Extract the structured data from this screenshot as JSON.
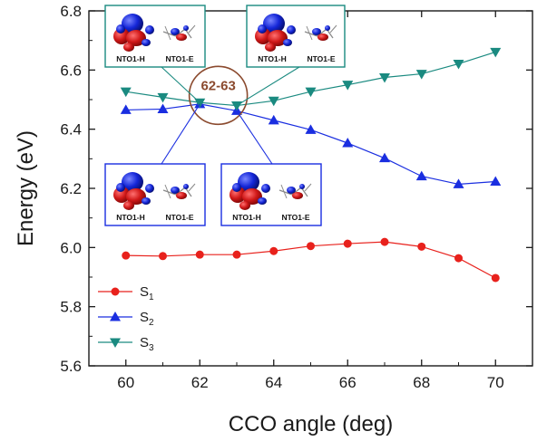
{
  "chart_data": {
    "type": "line",
    "xlabel": "CCO angle (deg)",
    "ylabel": "Energy (eV)",
    "xlim": [
      59,
      71
    ],
    "ylim": [
      5.6,
      6.8
    ],
    "xticks": [
      60,
      62,
      64,
      66,
      68,
      70
    ],
    "yticks": [
      5.6,
      5.8,
      6.0,
      6.2,
      6.4,
      6.6,
      6.8
    ],
    "xtick_labels": [
      "60",
      "62",
      "64",
      "66",
      "68",
      "70"
    ],
    "ytick_labels": [
      "5.6",
      "5.8",
      "6.0",
      "6.2",
      "6.4",
      "6.6",
      "6.8"
    ],
    "grid": false,
    "legend_position": "bottom-left",
    "x": [
      60,
      61,
      62,
      63,
      64,
      65,
      66,
      67,
      68,
      69,
      70
    ],
    "series": [
      {
        "name": "S1",
        "label_main": "S",
        "label_sub": "1",
        "marker": "circle",
        "color": "#e8211c",
        "values": [
          5.973,
          5.971,
          5.976,
          5.976,
          5.988,
          6.005,
          6.013,
          6.019,
          6.003,
          5.964,
          5.897
        ]
      },
      {
        "name": "S2",
        "label_main": "S",
        "label_sub": "2",
        "marker": "triangle-up",
        "color": "#1a2ee0",
        "values": [
          6.465,
          6.468,
          6.485,
          6.462,
          6.43,
          6.398,
          6.353,
          6.302,
          6.241,
          6.214,
          6.223
        ]
      },
      {
        "name": "S3",
        "label_main": "S",
        "label_sub": "3",
        "marker": "triangle-down",
        "color": "#1a8a80",
        "values": [
          6.527,
          6.508,
          6.49,
          6.48,
          6.496,
          6.527,
          6.55,
          6.575,
          6.587,
          6.621,
          6.661
        ]
      }
    ],
    "annotations": {
      "crossing": {
        "text": "62-63",
        "color": "#8b4a2e",
        "center_x": 62.5,
        "center_y": 6.49
      },
      "nto_insets": [
        {
          "id": "top-left",
          "border_color": "#1a8a80",
          "hole_label": "NTO1-H",
          "electron_label": "NTO1-E",
          "points_to": {
            "x": 62,
            "y": 6.49
          }
        },
        {
          "id": "top-right",
          "border_color": "#1a8a80",
          "hole_label": "NTO1-H",
          "electron_label": "NTO1-E",
          "points_to": {
            "x": 63,
            "y": 6.48
          }
        },
        {
          "id": "bottom-left",
          "border_color": "#1a2ee0",
          "hole_label": "NTO1-H",
          "electron_label": "NTO1-E",
          "points_to": {
            "x": 62,
            "y": 6.485
          }
        },
        {
          "id": "bottom-right",
          "border_color": "#1a2ee0",
          "hole_label": "NTO1-H",
          "electron_label": "NTO1-E",
          "points_to": {
            "x": 63,
            "y": 6.462
          }
        }
      ]
    }
  }
}
